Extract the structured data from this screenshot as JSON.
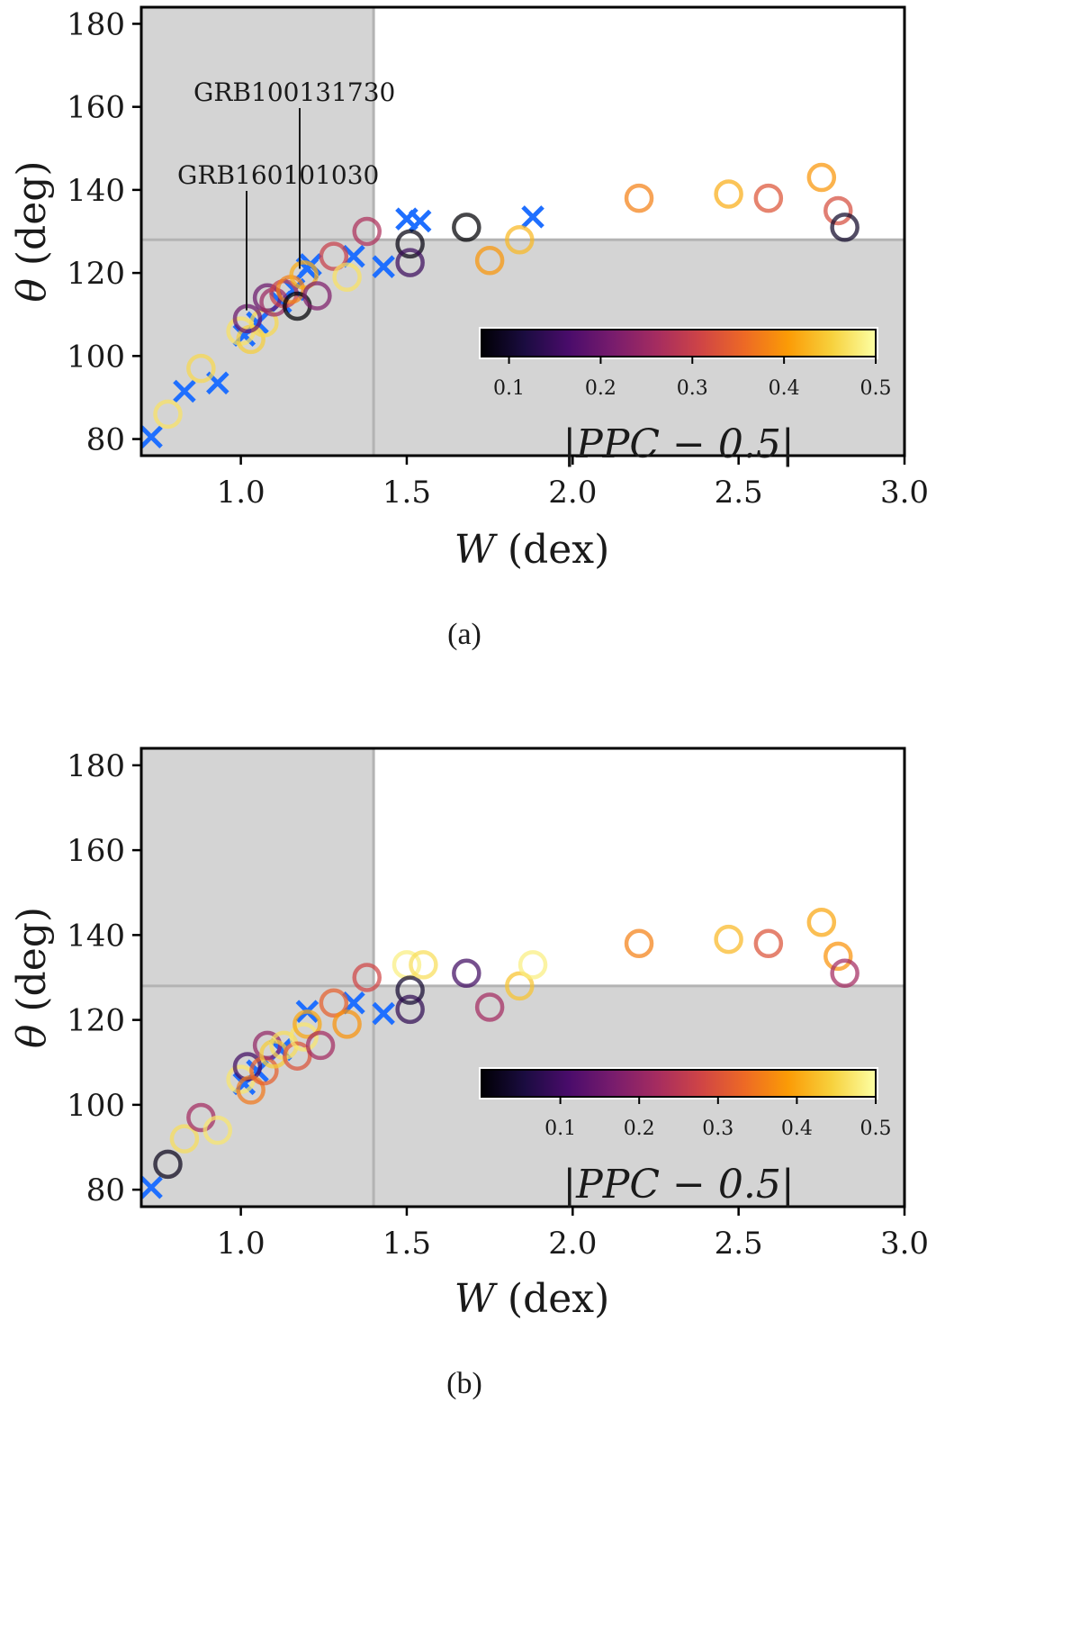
{
  "colors": {
    "shade": "#d4d4d4",
    "guide": "#b3b3b3",
    "cross": "#1f6fff",
    "axis": "#000000",
    "inferno": [
      "#000004",
      "#1b0c41",
      "#4a0c6b",
      "#781c6d",
      "#a52c60",
      "#cf4446",
      "#ed6925",
      "#fb9b06",
      "#f7d13d",
      "#fcffa4"
    ]
  },
  "chart_data": [
    {
      "panel": "a",
      "caption": "(a)",
      "type": "scatter",
      "xlabel_sym": "W",
      "xlabel_unit": "(dex)",
      "ylabel_sym": "θ",
      "ylabel_unit": "(deg)",
      "xlim": [
        0.7,
        3.0
      ],
      "ylim": [
        76,
        184
      ],
      "xticks": [
        1.0,
        1.5,
        2.0,
        2.5,
        3.0
      ],
      "xtick_labels": [
        "1.0",
        "1.5",
        "2.0",
        "2.5",
        "3.0"
      ],
      "yticks": [
        80,
        100,
        120,
        140,
        160,
        180
      ],
      "ytick_labels": [
        "80",
        "100",
        "120",
        "140",
        "160",
        "180"
      ],
      "shaded_regions": "x < 1.4 or θ < 128",
      "guide_lines": {
        "x": 1.4,
        "y": 128
      },
      "colorbar": {
        "label": "|PPC − 0.5|",
        "range": [
          0.07,
          0.5
        ],
        "ticks": [
          0.1,
          0.2,
          0.3,
          0.4,
          0.5
        ],
        "tick_labels": [
          "0.1",
          "0.2",
          "0.3",
          "0.4",
          "0.5"
        ]
      },
      "annotations": [
        {
          "text": "GRB100131730",
          "x": 1.18,
          "y": 121
        },
        {
          "text": "GRB160101030",
          "x": 1.02,
          "y": 111
        }
      ],
      "crosses": [
        {
          "x": 0.73,
          "y": 80.5
        },
        {
          "x": 0.83,
          "y": 91.5
        },
        {
          "x": 0.93,
          "y": 93.5
        },
        {
          "x": 1.01,
          "y": 105
        },
        {
          "x": 1.05,
          "y": 108
        },
        {
          "x": 1.12,
          "y": 113
        },
        {
          "x": 1.16,
          "y": 116
        },
        {
          "x": 1.2,
          "y": 121
        },
        {
          "x": 1.21,
          "y": 122
        },
        {
          "x": 1.34,
          "y": 124
        },
        {
          "x": 1.43,
          "y": 121.5
        },
        {
          "x": 1.5,
          "y": 133
        },
        {
          "x": 1.54,
          "y": 132.5
        },
        {
          "x": 1.88,
          "y": 133.5
        }
      ],
      "circles": [
        {
          "x": 0.78,
          "y": 86,
          "c": 0.47
        },
        {
          "x": 0.88,
          "y": 97,
          "c": 0.46
        },
        {
          "x": 1.0,
          "y": 106,
          "c": 0.47
        },
        {
          "x": 1.03,
          "y": 104,
          "c": 0.45
        },
        {
          "x": 1.07,
          "y": 108,
          "c": 0.46
        },
        {
          "x": 1.02,
          "y": 109,
          "c": 0.2
        },
        {
          "x": 1.08,
          "y": 114,
          "c": 0.2
        },
        {
          "x": 1.1,
          "y": 113,
          "c": 0.25
        },
        {
          "x": 1.13,
          "y": 115,
          "c": 0.3
        },
        {
          "x": 1.15,
          "y": 116,
          "c": 0.38
        },
        {
          "x": 1.17,
          "y": 112,
          "c": 0.07
        },
        {
          "x": 1.19,
          "y": 119.5,
          "c": 0.42
        },
        {
          "x": 1.23,
          "y": 114.5,
          "c": 0.22
        },
        {
          "x": 1.28,
          "y": 124,
          "c": 0.3
        },
        {
          "x": 1.32,
          "y": 119,
          "c": 0.47
        },
        {
          "x": 1.38,
          "y": 130,
          "c": 0.27
        },
        {
          "x": 1.51,
          "y": 127,
          "c": 0.08
        },
        {
          "x": 1.51,
          "y": 122.5,
          "c": 0.15
        },
        {
          "x": 1.68,
          "y": 131,
          "c": 0.07
        },
        {
          "x": 1.75,
          "y": 123,
          "c": 0.4
        },
        {
          "x": 1.84,
          "y": 128,
          "c": 0.43
        },
        {
          "x": 2.2,
          "y": 138,
          "c": 0.38
        },
        {
          "x": 2.47,
          "y": 139,
          "c": 0.42
        },
        {
          "x": 2.59,
          "y": 138,
          "c": 0.33
        },
        {
          "x": 2.75,
          "y": 143,
          "c": 0.4
        },
        {
          "x": 2.8,
          "y": 135,
          "c": 0.32
        },
        {
          "x": 2.82,
          "y": 131,
          "c": 0.1
        }
      ]
    },
    {
      "panel": "b",
      "caption": "(b)",
      "type": "scatter",
      "xlabel_sym": "W",
      "xlabel_unit": "(dex)",
      "ylabel_sym": "θ",
      "ylabel_unit": "(deg)",
      "xlim": [
        0.7,
        3.0
      ],
      "ylim": [
        76,
        184
      ],
      "xticks": [
        1.0,
        1.5,
        2.0,
        2.5,
        3.0
      ],
      "xtick_labels": [
        "1.0",
        "1.5",
        "2.0",
        "2.5",
        "3.0"
      ],
      "yticks": [
        80,
        100,
        120,
        140,
        160,
        180
      ],
      "ytick_labels": [
        "80",
        "100",
        "120",
        "140",
        "160",
        "180"
      ],
      "shaded_regions": "x < 1.4 or θ < 128",
      "guide_lines": {
        "x": 1.4,
        "y": 128
      },
      "colorbar": {
        "label": "|PPC − 0.5|",
        "range": [
          0.0,
          0.5
        ],
        "ticks": [
          0.1,
          0.2,
          0.3,
          0.4,
          0.5
        ],
        "tick_labels": [
          "0.1",
          "0.2",
          "0.3",
          "0.4",
          "0.5"
        ]
      },
      "annotations": [],
      "crosses": [
        {
          "x": 0.73,
          "y": 80.5
        },
        {
          "x": 1.01,
          "y": 105
        },
        {
          "x": 1.05,
          "y": 108
        },
        {
          "x": 1.12,
          "y": 113
        },
        {
          "x": 1.2,
          "y": 122
        },
        {
          "x": 1.34,
          "y": 124
        },
        {
          "x": 1.43,
          "y": 121.5
        }
      ],
      "circles": [
        {
          "x": 0.78,
          "y": 86,
          "c": 0.02
        },
        {
          "x": 0.83,
          "y": 92,
          "c": 0.46
        },
        {
          "x": 0.88,
          "y": 97,
          "c": 0.22
        },
        {
          "x": 0.93,
          "y": 94,
          "c": 0.47
        },
        {
          "x": 1.0,
          "y": 106,
          "c": 0.47
        },
        {
          "x": 1.02,
          "y": 109,
          "c": 0.1
        },
        {
          "x": 1.03,
          "y": 103.5,
          "c": 0.35
        },
        {
          "x": 1.07,
          "y": 108,
          "c": 0.32
        },
        {
          "x": 1.08,
          "y": 114,
          "c": 0.2
        },
        {
          "x": 1.1,
          "y": 112,
          "c": 0.44
        },
        {
          "x": 1.13,
          "y": 114,
          "c": 0.46
        },
        {
          "x": 1.17,
          "y": 111.5,
          "c": 0.3
        },
        {
          "x": 1.19,
          "y": 116,
          "c": 0.47
        },
        {
          "x": 1.2,
          "y": 119,
          "c": 0.4
        },
        {
          "x": 1.24,
          "y": 114,
          "c": 0.22
        },
        {
          "x": 1.28,
          "y": 124,
          "c": 0.32
        },
        {
          "x": 1.32,
          "y": 119,
          "c": 0.38
        },
        {
          "x": 1.38,
          "y": 130,
          "c": 0.28
        },
        {
          "x": 1.5,
          "y": 133,
          "c": 0.48
        },
        {
          "x": 1.51,
          "y": 127,
          "c": 0.04
        },
        {
          "x": 1.51,
          "y": 122.5,
          "c": 0.08
        },
        {
          "x": 1.55,
          "y": 133,
          "c": 0.46
        },
        {
          "x": 1.68,
          "y": 131,
          "c": 0.1
        },
        {
          "x": 1.75,
          "y": 123,
          "c": 0.22
        },
        {
          "x": 1.84,
          "y": 128,
          "c": 0.43
        },
        {
          "x": 1.88,
          "y": 133,
          "c": 0.48
        },
        {
          "x": 2.2,
          "y": 138,
          "c": 0.36
        },
        {
          "x": 2.47,
          "y": 139,
          "c": 0.42
        },
        {
          "x": 2.59,
          "y": 138,
          "c": 0.3
        },
        {
          "x": 2.75,
          "y": 143,
          "c": 0.4
        },
        {
          "x": 2.8,
          "y": 135,
          "c": 0.38
        },
        {
          "x": 2.82,
          "y": 131,
          "c": 0.22
        }
      ]
    }
  ]
}
